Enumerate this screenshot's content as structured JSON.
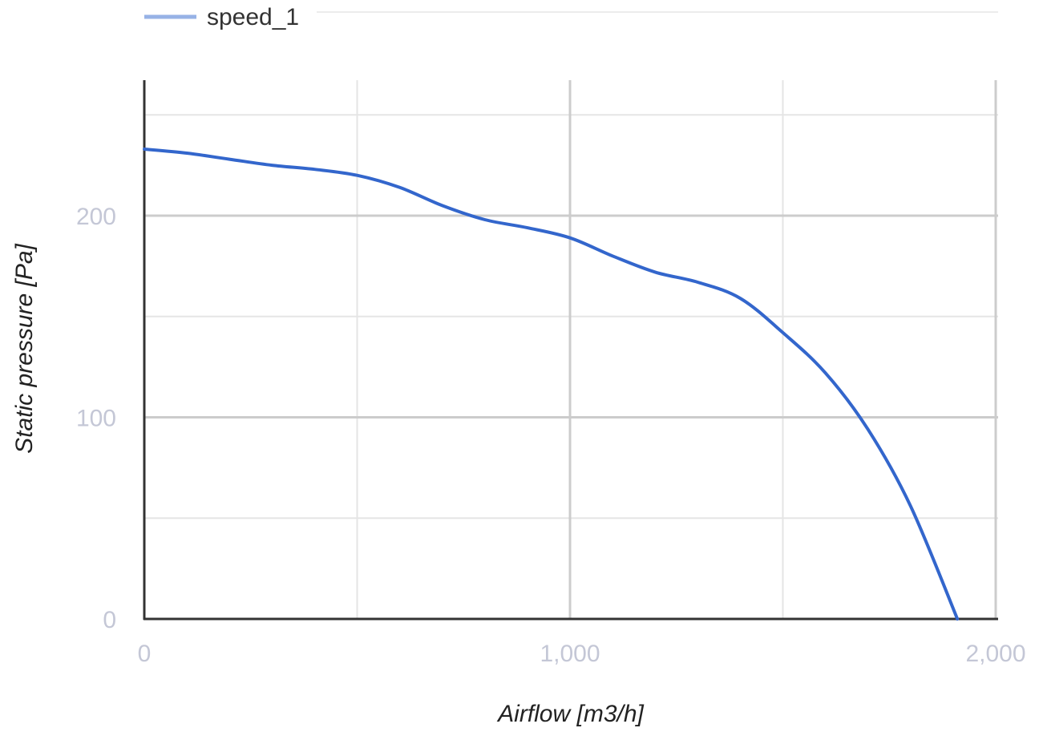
{
  "chart_data": {
    "type": "line",
    "title": "",
    "xlabel": "Airflow [m3/h]",
    "ylabel": "Static pressure [Pa]",
    "xlim": [
      0,
      2000
    ],
    "ylim": [
      0,
      250
    ],
    "xticks": [
      0,
      1000,
      2000
    ],
    "xtick_labels": [
      "0",
      "1,000",
      "2,000"
    ],
    "yticks": [
      0,
      100,
      200
    ],
    "ytick_labels": [
      "0",
      "100",
      "200"
    ],
    "grid": true,
    "legend": {
      "position": "top",
      "entries": [
        "speed_1"
      ]
    },
    "series": [
      {
        "name": "speed_1",
        "color": "#3366cc",
        "x": [
          0,
          100,
          200,
          300,
          400,
          500,
          600,
          700,
          800,
          900,
          1000,
          1100,
          1200,
          1300,
          1400,
          1500,
          1600,
          1700,
          1800,
          1910
        ],
        "y": [
          233,
          231,
          228,
          225,
          223,
          220,
          214,
          205,
          198,
          194,
          189,
          180,
          172,
          167,
          159,
          142,
          122,
          94,
          56,
          0
        ]
      }
    ]
  }
}
